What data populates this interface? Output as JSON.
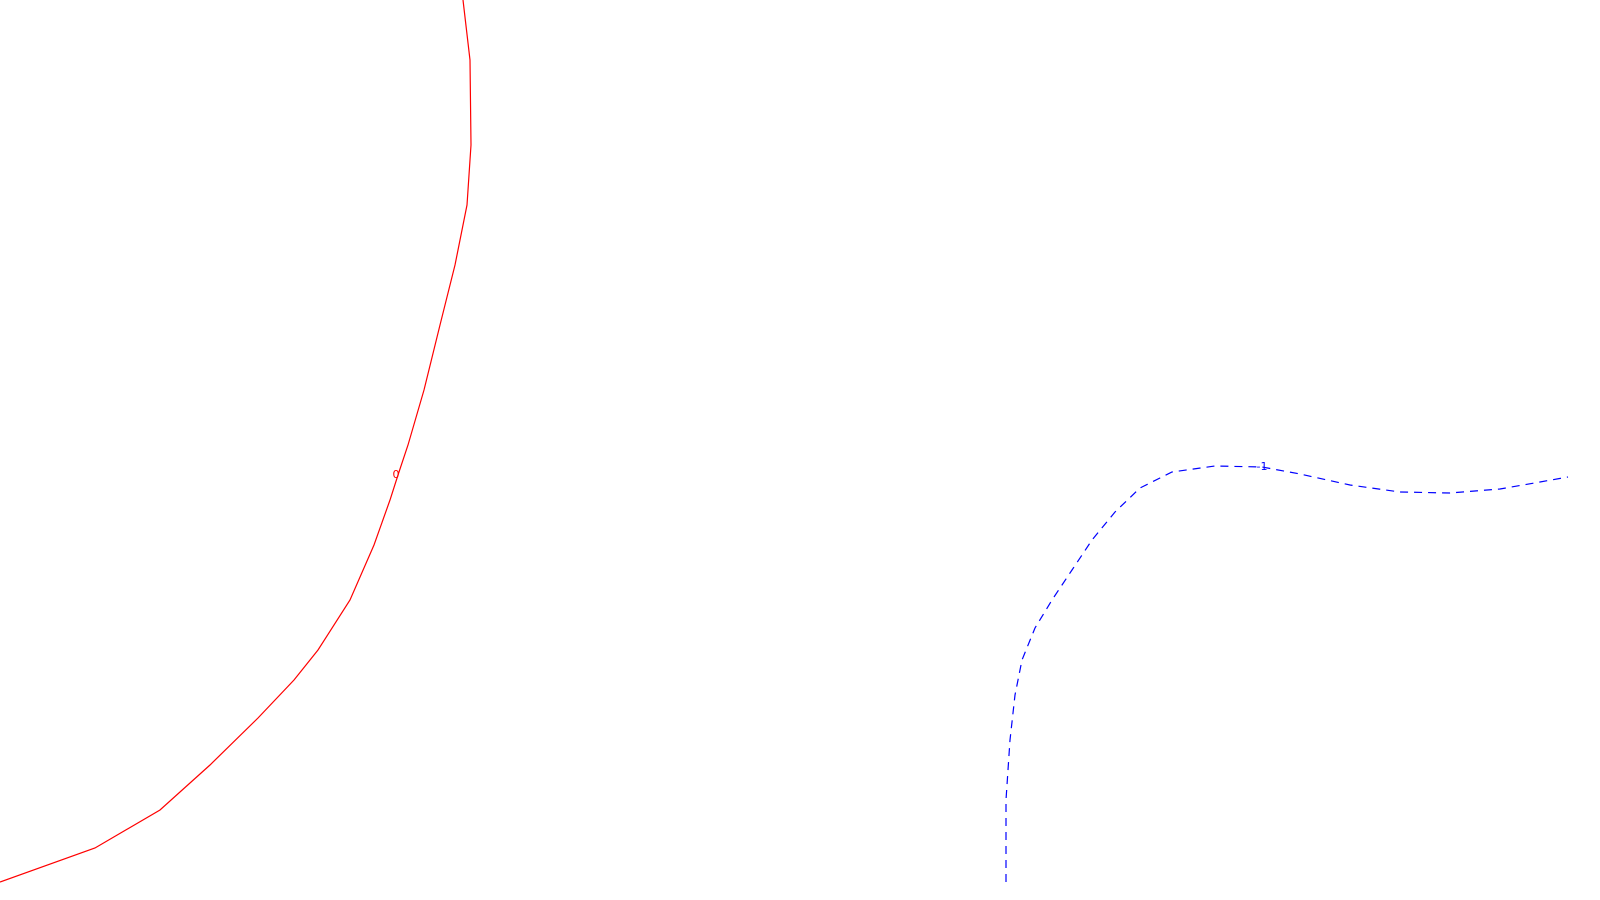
{
  "chart_data": {
    "type": "contour",
    "grid": false,
    "legend": "none",
    "series": [
      {
        "level_label": "0",
        "color": "#ff0000",
        "line_style": "solid",
        "points": [
          [
            -1.0,
            1.0
          ],
          [
            0.2,
            1.0
          ],
          [
            0.215,
            0.9
          ],
          [
            0.215,
            0.82
          ],
          [
            0.205,
            0.77
          ],
          [
            0.175,
            0.68
          ],
          [
            0.14,
            0.585
          ],
          [
            0.115,
            0.5
          ],
          [
            0.09,
            0.435
          ],
          [
            0.055,
            0.36
          ],
          [
            0.0,
            0.3
          ],
          [
            -0.05,
            0.255
          ],
          [
            -0.1,
            0.215
          ],
          [
            -0.15,
            0.18
          ],
          [
            -0.2,
            0.155
          ],
          [
            -1.0,
            -1.0
          ]
        ]
      },
      {
        "level_label": "-1",
        "color": "#0000ff",
        "line_style": "dashed",
        "points": [
          [
            1.0,
            -1.0
          ],
          [
            0.955,
            -1.0
          ],
          [
            0.955,
            -0.95
          ],
          [
            0.958,
            -0.86
          ],
          [
            0.962,
            -0.8
          ],
          [
            0.975,
            -0.74
          ],
          [
            0.99,
            -0.69
          ],
          [
            1.01,
            -0.63
          ],
          [
            1.04,
            -0.585
          ],
          [
            1.075,
            -0.55
          ],
          [
            1.11,
            -0.525
          ],
          [
            1.15,
            -0.515
          ],
          [
            1.19,
            -0.515
          ],
          [
            1.25,
            -0.528
          ],
          [
            1.3,
            -0.54
          ],
          [
            1.35,
            -0.54
          ],
          [
            1.39,
            -0.535
          ],
          [
            1.42,
            -0.525
          ],
          [
            1.0,
            1.0
          ]
        ]
      }
    ]
  }
}
